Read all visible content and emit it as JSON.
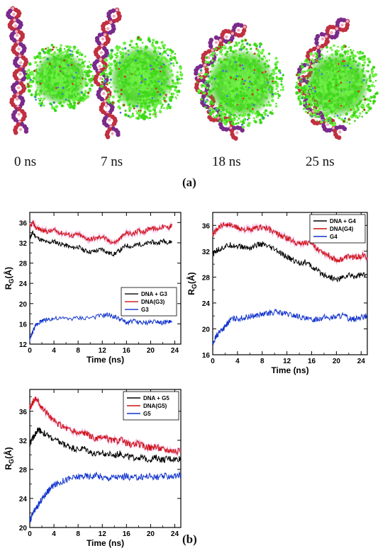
{
  "panel_a": {
    "label": "(a)",
    "snapshots": [
      {
        "time_label": "0 ns"
      },
      {
        "time_label": "7 ns"
      },
      {
        "time_label": "18 ns"
      },
      {
        "time_label": "25 ns"
      }
    ],
    "colors": {
      "dna_backbone": "#7a2a8a",
      "dna_bases": "#c03040",
      "dna_highlight": "#f0a8b8",
      "dendrimer": "#44d61e"
    }
  },
  "panel_b": {
    "label": "(b)"
  },
  "chart_data": [
    {
      "type": "line",
      "xlabel": "Time (ns)",
      "ylabel": "R",
      "ylabel_sub": "G",
      "ylabel_unit": "(Å)",
      "xlim": [
        0,
        25
      ],
      "ylim": [
        12,
        38
      ],
      "xticks": [
        0,
        4,
        8,
        12,
        16,
        20,
        24
      ],
      "yticks": [
        12,
        16,
        20,
        24,
        28,
        32,
        36
      ],
      "legend": "right-middle",
      "series": [
        {
          "name": "DNA + G3",
          "color": "#000000",
          "x": [
            0,
            0.5,
            1,
            2,
            3,
            4,
            5,
            6,
            7,
            8,
            9,
            10,
            11,
            12,
            13,
            14,
            15,
            16,
            17,
            18,
            19,
            20,
            21,
            22,
            23,
            23.5
          ],
          "y": [
            33,
            34,
            33.2,
            32.5,
            32,
            32.3,
            31.8,
            31.5,
            31,
            31.2,
            30.5,
            30.2,
            30.4,
            30.8,
            30,
            29.8,
            30.6,
            31.5,
            31.2,
            31.8,
            31.6,
            32.2,
            31.9,
            32.4,
            32.1,
            32.3
          ]
        },
        {
          "name": "DNA(G3)",
          "color": "#cc1111",
          "x": [
            0,
            0.5,
            1,
            2,
            3,
            4,
            5,
            6,
            7,
            8,
            9,
            10,
            11,
            12,
            13,
            14,
            15,
            16,
            17,
            18,
            19,
            20,
            21,
            22,
            23,
            23.5
          ],
          "y": [
            35,
            36,
            35,
            34.5,
            34.2,
            34.5,
            34,
            33.8,
            33.4,
            33.7,
            33,
            32.7,
            32.9,
            33.3,
            32.4,
            32,
            32.9,
            34,
            33.7,
            34.4,
            34.2,
            35,
            34.7,
            35.2,
            35,
            35.4
          ]
        },
        {
          "name": "G3",
          "color": "#1133cc",
          "x": [
            0,
            0.3,
            0.6,
            1,
            1.5,
            2,
            3,
            4,
            6,
            8,
            10,
            12,
            13,
            14,
            15,
            16,
            17,
            18,
            19,
            20,
            21,
            22,
            23,
            23.5
          ],
          "y": [
            12.8,
            13.8,
            14.8,
            15.7,
            16.3,
            16.6,
            16.9,
            17,
            17,
            17.1,
            17.2,
            17.6,
            17.8,
            17.4,
            16.9,
            16.2,
            16.6,
            16.3,
            16.1,
            16.4,
            16.6,
            16.2,
            16.4,
            16.3
          ]
        }
      ]
    },
    {
      "type": "line",
      "xlabel": "Time (ns)",
      "ylabel": "R",
      "ylabel_sub": "G",
      "ylabel_unit": "(Å)",
      "xlim": [
        0,
        25
      ],
      "ylim": [
        16,
        38
      ],
      "xticks": [
        0,
        4,
        8,
        12,
        16,
        20,
        24
      ],
      "yticks": [
        16,
        20,
        24,
        28,
        32,
        36
      ],
      "legend": "top-right",
      "series": [
        {
          "name": "DNA + G4",
          "color": "#000000",
          "x": [
            0,
            0.5,
            1,
            2,
            3,
            4,
            5,
            6,
            7,
            8,
            9,
            10,
            11,
            12,
            13,
            14,
            15,
            16,
            17,
            18,
            19,
            20,
            21,
            22,
            23,
            24,
            25
          ],
          "y": [
            31.5,
            32,
            32.3,
            32.7,
            33,
            32.8,
            32.6,
            32.5,
            32.9,
            33.1,
            32.6,
            32.3,
            31.6,
            31.1,
            30.6,
            30.2,
            30.3,
            29.6,
            28.9,
            28.4,
            28,
            27.6,
            27.9,
            28.3,
            28.1,
            28.4,
            28.2
          ]
        },
        {
          "name": "DNA(G4)",
          "color": "#cc1111",
          "x": [
            0,
            0.5,
            1,
            2,
            3,
            4,
            5,
            6,
            7,
            8,
            9,
            10,
            11,
            12,
            13,
            14,
            15,
            16,
            17,
            18,
            19,
            20,
            21,
            22,
            23,
            24,
            25
          ],
          "y": [
            34.5,
            35.2,
            35.8,
            36.2,
            36,
            35.6,
            35.4,
            35.2,
            35.5,
            35.8,
            35.4,
            34.9,
            34.4,
            34,
            33.6,
            33.2,
            33.4,
            33,
            32.4,
            31.8,
            31.2,
            30.6,
            30.8,
            31.2,
            31,
            31.3,
            31.1
          ]
        },
        {
          "name": "G4",
          "color": "#1133cc",
          "x": [
            0,
            0.3,
            0.6,
            1,
            1.5,
            2,
            2.5,
            3,
            4,
            5,
            6,
            7,
            8,
            9,
            10,
            11,
            12,
            13,
            14,
            15,
            16,
            17,
            18,
            19,
            20,
            21,
            22,
            23,
            24,
            25
          ],
          "y": [
            17.5,
            18.3,
            18.9,
            19.5,
            19.9,
            20.3,
            21,
            21.5,
            21.6,
            21.7,
            21.9,
            22.1,
            22.2,
            22.4,
            22.6,
            22.5,
            22.3,
            22.1,
            21.9,
            21.5,
            21.4,
            21.6,
            21.8,
            21.7,
            21.9,
            22.1,
            21.6,
            21.5,
            21.8,
            22
          ]
        }
      ]
    },
    {
      "type": "line",
      "xlabel": "Time (ns)",
      "ylabel": "R",
      "ylabel_sub": "G",
      "ylabel_unit": "(Å)",
      "xlim": [
        0,
        25
      ],
      "ylim": [
        20,
        39
      ],
      "xticks": [
        0,
        4,
        8,
        12,
        16,
        20,
        24
      ],
      "yticks": [
        20,
        24,
        28,
        32,
        36
      ],
      "legend": "top-right",
      "series": [
        {
          "name": "DNA + G5",
          "color": "#000000",
          "x": [
            0,
            0.5,
            1,
            1.5,
            2,
            3,
            4,
            5,
            6,
            7,
            8,
            9,
            10,
            11,
            12,
            13,
            14,
            15,
            16,
            17,
            18,
            19,
            20,
            21,
            22,
            23,
            24,
            25
          ],
          "y": [
            31.5,
            32.3,
            33,
            33.5,
            33.2,
            32.6,
            32.1,
            31.7,
            31.3,
            31,
            30.7,
            30.9,
            30.4,
            30,
            30.3,
            30.1,
            29.9,
            30.2,
            29.8,
            29.6,
            29.7,
            29.5,
            29.4,
            29.6,
            29.3,
            29.5,
            29.4,
            29.5
          ]
        },
        {
          "name": "DNA(G5)",
          "color": "#cc1111",
          "x": [
            0,
            0.5,
            1,
            1.5,
            2,
            3,
            4,
            5,
            6,
            7,
            8,
            9,
            10,
            11,
            12,
            13,
            14,
            15,
            16,
            17,
            18,
            19,
            20,
            21,
            22,
            23,
            24,
            25
          ],
          "y": [
            36.3,
            37.2,
            37.8,
            37.3,
            36.5,
            35.6,
            34.6,
            34.1,
            33.7,
            33.3,
            33,
            33.1,
            32.6,
            32.1,
            32.4,
            32.2,
            31.9,
            32.1,
            31.6,
            31.4,
            31.5,
            31.2,
            31,
            31.1,
            30.8,
            30.7,
            30.6,
            30.4
          ]
        },
        {
          "name": "G5",
          "color": "#1133cc",
          "x": [
            0,
            0.3,
            0.6,
            1,
            1.5,
            2,
            2.5,
            3,
            3.5,
            4,
            5,
            6,
            7,
            8,
            9,
            10,
            11,
            12,
            13,
            14,
            15,
            16,
            17,
            18,
            19,
            20,
            21,
            22,
            23,
            24,
            25
          ],
          "y": [
            20.8,
            21.5,
            22,
            22.6,
            23.2,
            23.9,
            24.5,
            25,
            25.5,
            25.8,
            26.2,
            26.6,
            26.8,
            27,
            27.1,
            27,
            27.2,
            26.9,
            26.8,
            27,
            26.9,
            27.1,
            26.8,
            26.9,
            27,
            27.1,
            26.9,
            27,
            27.1,
            27,
            27.2
          ]
        }
      ]
    }
  ]
}
